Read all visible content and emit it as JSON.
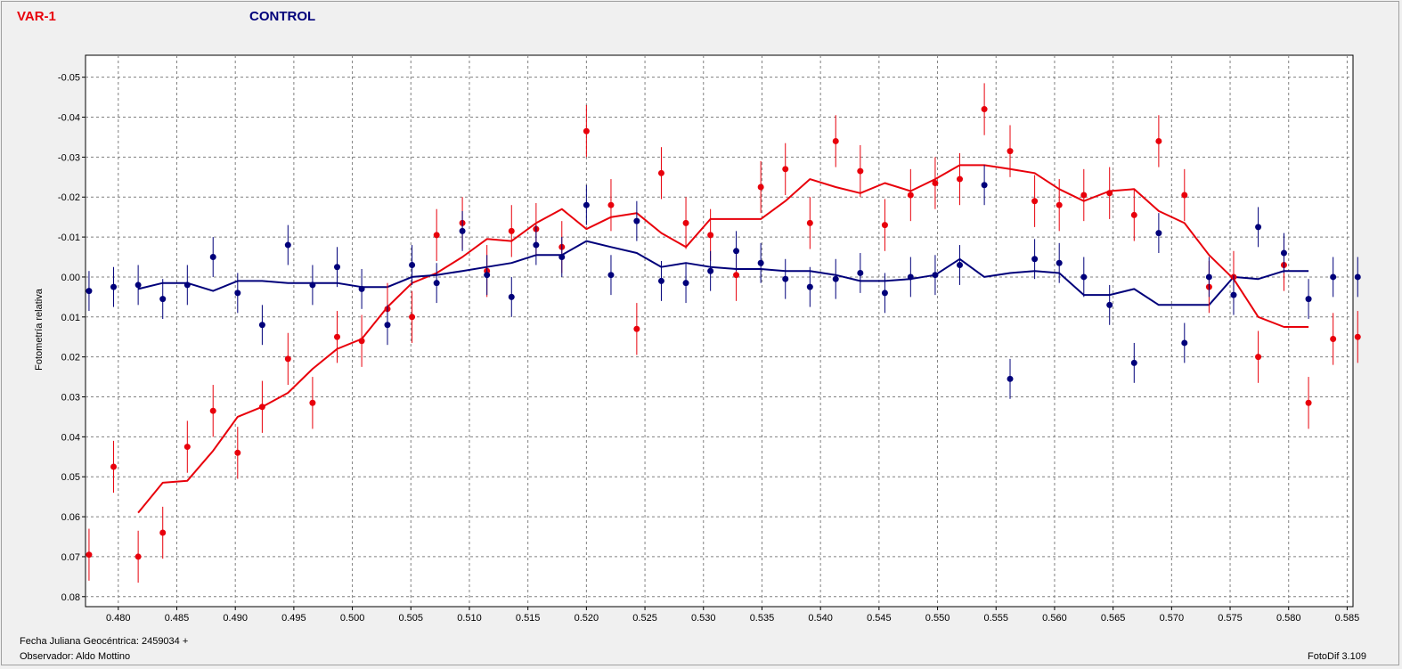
{
  "legend": {
    "var": {
      "label": "VAR-1",
      "color": "#e8000b"
    },
    "control": {
      "label": "CONTROL",
      "color": "#00007a"
    }
  },
  "footer": {
    "jd_label": "Fecha Juliana Geocéntrica: 2459034 +",
    "observer_label": "Observador: Aldo Mottino",
    "software": "FotoDif 3.109"
  },
  "chart_data": {
    "type": "scatter",
    "ylabel": "Fotometría relativa",
    "xlabel": "",
    "xlim": [
      0.4772,
      0.5855
    ],
    "ylim": [
      -0.0555,
      0.0825
    ],
    "y_inverted": true,
    "grid": true,
    "x_ticks": [
      "0.480",
      "0.485",
      "0.490",
      "0.495",
      "0.500",
      "0.505",
      "0.510",
      "0.515",
      "0.520",
      "0.525",
      "0.530",
      "0.535",
      "0.540",
      "0.545",
      "0.550",
      "0.555",
      "0.560",
      "0.565",
      "0.570",
      "0.575",
      "0.580",
      "0.585"
    ],
    "y_ticks": [
      "-0.05",
      "-0.04",
      "-0.03",
      "-0.02",
      "-0.01",
      "0.00",
      "0.01",
      "0.02",
      "0.03",
      "0.04",
      "0.05",
      "0.06",
      "0.07",
      "0.08"
    ],
    "series": [
      {
        "name": "VAR-1",
        "color": "#e8000b",
        "x": [
          0.4775,
          0.4796,
          0.4817,
          0.4838,
          0.4859,
          0.4881,
          0.4902,
          0.4923,
          0.4945,
          0.4966,
          0.4987,
          0.5008,
          0.503,
          0.5051,
          0.5072,
          0.5094,
          0.5115,
          0.5136,
          0.5157,
          0.5179,
          0.52,
          0.5221,
          0.5243,
          0.5264,
          0.5285,
          0.5306,
          0.5328,
          0.5349,
          0.537,
          0.5391,
          0.5413,
          0.5434,
          0.5455,
          0.5477,
          0.5498,
          0.5519,
          0.554,
          0.5562,
          0.5583,
          0.5604,
          0.5625,
          0.5647,
          0.5668,
          0.5689,
          0.5711,
          0.5732,
          0.5753,
          0.5774,
          0.5796,
          0.5817,
          0.5838,
          0.5859
        ],
        "y": [
          0.0695,
          0.0475,
          0.07,
          0.064,
          0.0425,
          0.0335,
          0.044,
          0.0325,
          0.0205,
          0.0315,
          0.015,
          0.016,
          0.008,
          0.01,
          -0.0105,
          -0.0135,
          -0.0015,
          -0.0115,
          -0.012,
          -0.0075,
          -0.0365,
          -0.018,
          0.013,
          -0.026,
          -0.0135,
          -0.0105,
          -0.0005,
          -0.0225,
          -0.027,
          -0.0135,
          -0.034,
          -0.0265,
          -0.013,
          -0.0205,
          -0.0235,
          -0.0245,
          -0.042,
          -0.0315,
          -0.019,
          -0.018,
          -0.0205,
          -0.021,
          -0.0155,
          -0.034,
          -0.0205,
          0.0025,
          0.0,
          0.02,
          -0.003,
          0.0315,
          0.0155,
          0.015
        ],
        "err": 0.0065,
        "smooth_x": [
          0.4817,
          0.4838,
          0.4859,
          0.4881,
          0.4902,
          0.4923,
          0.4945,
          0.4966,
          0.4987,
          0.5008,
          0.503,
          0.5051,
          0.5072,
          0.5094,
          0.5115,
          0.5136,
          0.5157,
          0.5179,
          0.52,
          0.5221,
          0.5243,
          0.5264,
          0.5285,
          0.5306,
          0.5328,
          0.5349,
          0.537,
          0.5391,
          0.5413,
          0.5434,
          0.5455,
          0.5477,
          0.5498,
          0.5519,
          0.554,
          0.5562,
          0.5583,
          0.5604,
          0.5625,
          0.5647,
          0.5668,
          0.5689,
          0.5711,
          0.5732,
          0.5753,
          0.5774,
          0.5796,
          0.5817
        ],
        "smooth_y": [
          0.059,
          0.0515,
          0.051,
          0.0435,
          0.035,
          0.0325,
          0.029,
          0.023,
          0.018,
          0.0155,
          0.0075,
          0.0015,
          -0.001,
          -0.005,
          -0.0095,
          -0.009,
          -0.0135,
          -0.017,
          -0.012,
          -0.015,
          -0.016,
          -0.011,
          -0.0075,
          -0.0145,
          -0.0145,
          -0.0145,
          -0.019,
          -0.0245,
          -0.0225,
          -0.021,
          -0.0235,
          -0.0215,
          -0.0245,
          -0.028,
          -0.028,
          -0.027,
          -0.026,
          -0.022,
          -0.019,
          -0.0215,
          -0.022,
          -0.0165,
          -0.0135,
          -0.0055,
          0.0005,
          0.01,
          0.0125,
          0.0125
        ]
      },
      {
        "name": "CONTROL",
        "color": "#00007a",
        "x": [
          0.4775,
          0.4796,
          0.4817,
          0.4838,
          0.4859,
          0.4881,
          0.4902,
          0.4923,
          0.4945,
          0.4966,
          0.4987,
          0.5008,
          0.503,
          0.5051,
          0.5072,
          0.5094,
          0.5115,
          0.5136,
          0.5157,
          0.5179,
          0.52,
          0.5221,
          0.5243,
          0.5264,
          0.5285,
          0.5306,
          0.5328,
          0.5349,
          0.537,
          0.5391,
          0.5413,
          0.5434,
          0.5455,
          0.5477,
          0.5498,
          0.5519,
          0.554,
          0.5562,
          0.5583,
          0.5604,
          0.5625,
          0.5647,
          0.5668,
          0.5689,
          0.5711,
          0.5732,
          0.5753,
          0.5774,
          0.5796,
          0.5817,
          0.5838,
          0.5859
        ],
        "y": [
          0.0035,
          0.0025,
          0.002,
          0.0055,
          0.002,
          -0.005,
          0.004,
          0.012,
          -0.008,
          0.002,
          -0.0025,
          0.003,
          0.012,
          -0.003,
          0.0015,
          -0.0115,
          -0.0005,
          0.005,
          -0.008,
          -0.005,
          -0.018,
          -0.0005,
          -0.014,
          0.001,
          0.0015,
          -0.0015,
          -0.0065,
          -0.0035,
          0.0005,
          0.0025,
          0.0005,
          -0.001,
          0.004,
          0.0,
          -0.0005,
          -0.003,
          -0.023,
          0.0255,
          -0.0045,
          -0.0035,
          0.0,
          0.007,
          0.0215,
          -0.011,
          0.0165,
          0.0,
          0.0045,
          -0.0125,
          -0.006,
          0.0055,
          0.0,
          0.0
        ],
        "err": 0.005,
        "smooth_x": [
          0.4817,
          0.4838,
          0.4859,
          0.4881,
          0.4902,
          0.4923,
          0.4945,
          0.4966,
          0.4987,
          0.5008,
          0.503,
          0.5051,
          0.5072,
          0.5094,
          0.5115,
          0.5136,
          0.5157,
          0.5179,
          0.52,
          0.5221,
          0.5243,
          0.5264,
          0.5285,
          0.5306,
          0.5328,
          0.5349,
          0.537,
          0.5391,
          0.5413,
          0.5434,
          0.5455,
          0.5477,
          0.5498,
          0.5519,
          0.554,
          0.5562,
          0.5583,
          0.5604,
          0.5625,
          0.5647,
          0.5668,
          0.5689,
          0.5711,
          0.5732,
          0.5753,
          0.5774,
          0.5796,
          0.5817
        ],
        "smooth_y": [
          0.003,
          0.0015,
          0.0015,
          0.0035,
          0.001,
          0.001,
          0.0015,
          0.0015,
          0.0015,
          0.0025,
          0.0025,
          0.0,
          -0.0005,
          -0.0015,
          -0.0025,
          -0.0035,
          -0.0055,
          -0.0055,
          -0.009,
          -0.0075,
          -0.006,
          -0.0025,
          -0.0035,
          -0.0025,
          -0.002,
          -0.002,
          -0.0015,
          -0.0015,
          -0.0005,
          0.001,
          0.001,
          0.0005,
          -0.0005,
          -0.0045,
          0.0,
          -0.001,
          -0.0015,
          -0.001,
          0.0045,
          0.0045,
          0.003,
          0.007,
          0.007,
          0.007,
          0.0,
          0.0005,
          -0.0015,
          -0.0015
        ]
      }
    ]
  }
}
